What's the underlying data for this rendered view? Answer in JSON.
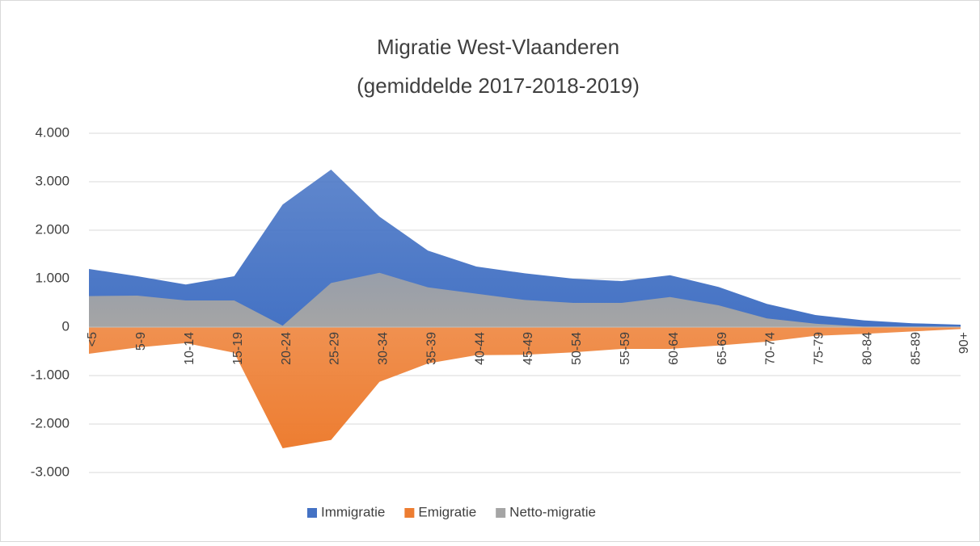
{
  "chart_data": {
    "type": "area",
    "title": "Migratie West-Vlaanderen",
    "subtitle": "(gemiddelde 2017-2018-2019)",
    "categories": [
      "<5",
      "5-9",
      "10-14",
      "15-19",
      "20-24",
      "25-29",
      "30-34",
      "35-39",
      "40-44",
      "45-49",
      "50-54",
      "55-59",
      "60-64",
      "65-69",
      "70-74",
      "75-79",
      "80-84",
      "85-89",
      "90+"
    ],
    "series": [
      {
        "name": "Immigratie",
        "color": "#4472c4",
        "values": [
          1200,
          1050,
          880,
          1050,
          2530,
          3250,
          2280,
          1580,
          1250,
          1110,
          1000,
          950,
          1070,
          830,
          480,
          250,
          140,
          80,
          50
        ]
      },
      {
        "name": "Emigratie",
        "color": "#ed7d31",
        "values": [
          -550,
          -420,
          -330,
          -530,
          -2500,
          -2330,
          -1130,
          -750,
          -580,
          -570,
          -520,
          -450,
          -450,
          -380,
          -300,
          -180,
          -140,
          -90,
          -40
        ]
      },
      {
        "name": "Netto-migratie",
        "color": "#a5a5a5",
        "values": [
          640,
          650,
          550,
          550,
          30,
          910,
          1120,
          820,
          690,
          560,
          500,
          500,
          620,
          450,
          180,
          70,
          10,
          10,
          10
        ]
      }
    ],
    "ylim": [
      -3000,
      4000
    ],
    "yticks": [
      {
        "value": -3000,
        "label": "-3.000"
      },
      {
        "value": -2000,
        "label": "-2.000"
      },
      {
        "value": -1000,
        "label": "-1.000"
      },
      0,
      {
        "value": 1000,
        "label": "1.000"
      },
      {
        "value": 2000,
        "label": "2.000"
      },
      {
        "value": 3000,
        "label": "3.000"
      },
      {
        "value": 4000,
        "label": "4.000"
      }
    ],
    "grid": true,
    "legend": "bottom"
  }
}
